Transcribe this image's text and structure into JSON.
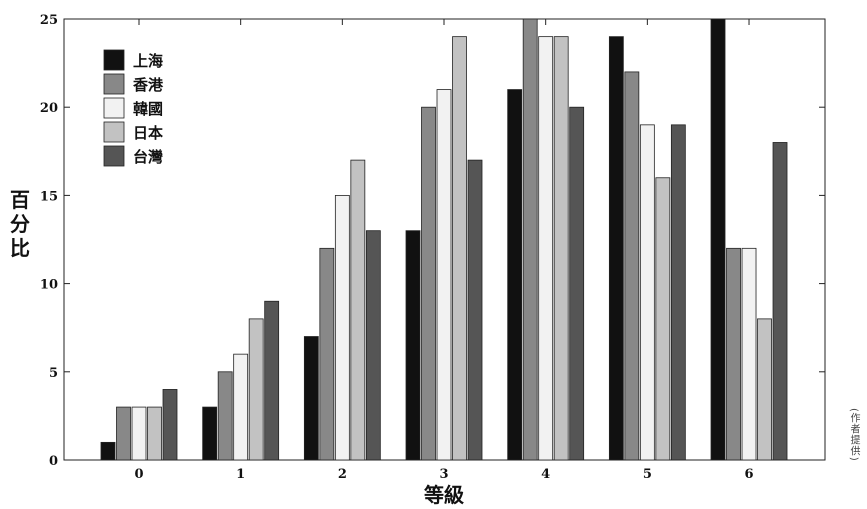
{
  "chart_data": {
    "type": "bar",
    "categories": [
      "0",
      "1",
      "2",
      "3",
      "4",
      "5",
      "6"
    ],
    "series": [
      {
        "name": "上海",
        "values": [
          1,
          3,
          7,
          13,
          21,
          24,
          25
        ]
      },
      {
        "name": "香港",
        "values": [
          3,
          5,
          12,
          20,
          25,
          22,
          12
        ]
      },
      {
        "name": "韓國",
        "values": [
          3,
          6,
          15,
          21,
          24,
          19,
          12
        ]
      },
      {
        "name": "日本",
        "values": [
          3,
          8,
          17,
          24,
          24,
          16,
          8
        ]
      },
      {
        "name": "台灣",
        "values": [
          4,
          9,
          13,
          17,
          20,
          19,
          18
        ]
      }
    ],
    "xlabel": "等級",
    "ylabel": "百分比",
    "ylim": [
      0,
      25
    ],
    "yticks": [
      "0",
      "5",
      "10",
      "15",
      "20",
      "25"
    ],
    "grid": false,
    "legend_position": "top-left"
  },
  "colors": {
    "上海": "#111111",
    "香港": "#888888",
    "韓國": "#f2f2f2",
    "日本": "#c2c2c2",
    "台灣": "#555555"
  },
  "credit": "(作者提供)"
}
